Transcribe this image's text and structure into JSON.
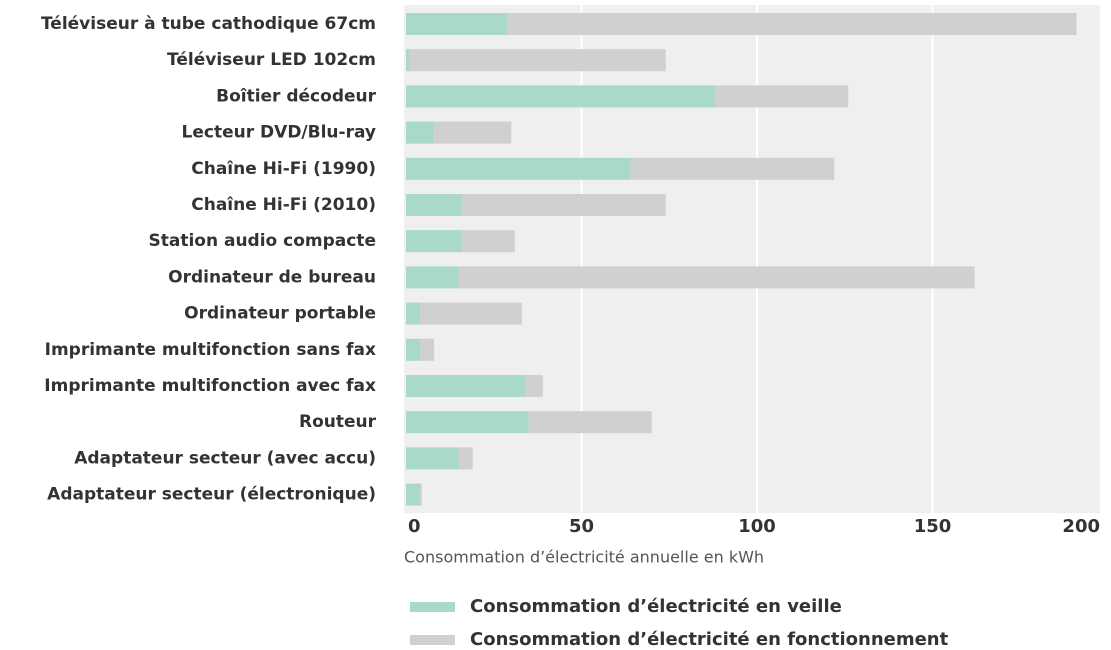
{
  "chart_data": {
    "type": "bar",
    "orientation": "horizontal",
    "stacked": true,
    "x_label": "Consommation d’électricité annuelle en kWh",
    "categories": [
      "Téléviseur à tube cathodique 67cm",
      "Téléviseur LED 102cm",
      "Boîtier décodeur",
      "Lecteur DVD/Blu-ray",
      "Chaîne Hi-Fi (1990)",
      "Chaîne Hi-Fi (2010)",
      "Station audio compacte",
      "Ordinateur de bureau",
      "Ordinateur portable",
      "Imprimante multifonction sans fax",
      "Imprimante multifonction avec fax",
      "Routeur",
      "Adaptateur secteur (avec accu)",
      "Adaptateur secteur (électronique)"
    ],
    "series": [
      {
        "name": "Consommation d’électricité en veille",
        "color": "#a8d9c9",
        "values": [
          29,
          1,
          88,
          8,
          64,
          16,
          16,
          15,
          4,
          4,
          34,
          35,
          15,
          4
        ]
      },
      {
        "name": "Consommation d’électricité en fonctionnement",
        "color": "#d0d0d0",
        "values": [
          162,
          73,
          38,
          22,
          58,
          58,
          15,
          147,
          29,
          4,
          5,
          35,
          4,
          0.5
        ]
      }
    ],
    "xlim": [
      0,
      200
    ],
    "xticks": [
      0,
      50,
      100,
      150,
      200
    ],
    "grid": true
  }
}
